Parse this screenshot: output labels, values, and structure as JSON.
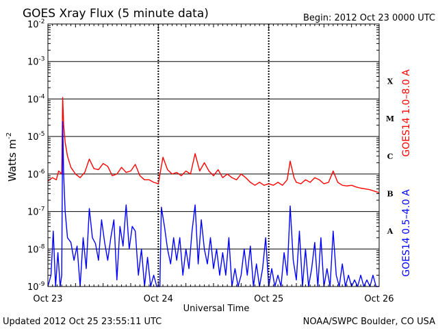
{
  "header": {
    "title": "GOES Xray Flux (5 minute data)",
    "begin": "Begin:  2012 Oct 23 0000 UTC"
  },
  "footer": {
    "updated": "Updated 2012 Oct 25 23:55:11 UTC",
    "source": "NOAA/SWPC Boulder, CO USA"
  },
  "chart_data": {
    "type": "line",
    "title": "GOES Xray Flux (5 minute data)",
    "xlabel": "Universal Time",
    "ylabel": "Watts m",
    "ylabel_sup": "-2",
    "yscale": "log",
    "ylim": [
      1e-09,
      0.01
    ],
    "xlim": [
      "2012-10-23 00:00",
      "2012-10-26 00:00"
    ],
    "x_ticks": [
      {
        "date": "2012-10-23 00:00",
        "label": "Oct 23"
      },
      {
        "date": "2012-10-24 00:00",
        "label": "Oct 24"
      },
      {
        "date": "2012-10-25 00:00",
        "label": "Oct 25"
      },
      {
        "date": "2012-10-26 00:00",
        "label": "Oct 26"
      }
    ],
    "y_ticks": [
      {
        "value": 0.01,
        "base": "10",
        "exp": "-2"
      },
      {
        "value": 0.001,
        "base": "10",
        "exp": "-3"
      },
      {
        "value": 0.0001,
        "base": "10",
        "exp": "-4"
      },
      {
        "value": 1e-05,
        "base": "10",
        "exp": "-5"
      },
      {
        "value": 1e-06,
        "base": "10",
        "exp": "-6"
      },
      {
        "value": 1e-07,
        "base": "10",
        "exp": "-7"
      },
      {
        "value": 1e-08,
        "base": "10",
        "exp": "-8"
      },
      {
        "value": 1e-09,
        "base": "10",
        "exp": "-9"
      }
    ],
    "flare_classes": [
      {
        "label": "X",
        "value": 0.0003
      },
      {
        "label": "M",
        "value": 3e-05
      },
      {
        "label": "C",
        "value": 3e-06
      },
      {
        "label": "B",
        "value": 3e-07
      },
      {
        "label": "A",
        "value": 3e-08
      }
    ],
    "grid": true,
    "series": [
      {
        "name": "GOES14 1.0–8.0 A",
        "color": "#ff0000",
        "points": [
          [
            "2012-10-23 00:00",
            6.5e-07
          ],
          [
            "2012-10-23 01:00",
            8e-07
          ],
          [
            "2012-10-23 01:50",
            7e-07
          ],
          [
            "2012-10-23 02:20",
            1.2e-06
          ],
          [
            "2012-10-23 03:00",
            1e-06
          ],
          [
            "2012-10-23 03:13",
            0.00011
          ],
          [
            "2012-10-23 03:25",
            2e-05
          ],
          [
            "2012-10-23 03:45",
            7e-06
          ],
          [
            "2012-10-23 04:15",
            3e-06
          ],
          [
            "2012-10-23 05:00",
            1.5e-06
          ],
          [
            "2012-10-23 06:00",
            1e-06
          ],
          [
            "2012-10-23 07:00",
            8e-07
          ],
          [
            "2012-10-23 08:00",
            1.1e-06
          ],
          [
            "2012-10-23 09:00",
            2.5e-06
          ],
          [
            "2012-10-23 10:00",
            1.4e-06
          ],
          [
            "2012-10-23 11:00",
            1.3e-06
          ],
          [
            "2012-10-23 12:00",
            1.9e-06
          ],
          [
            "2012-10-23 13:00",
            1.6e-06
          ],
          [
            "2012-10-23 14:00",
            9e-07
          ],
          [
            "2012-10-23 15:00",
            1e-06
          ],
          [
            "2012-10-23 16:00",
            1.5e-06
          ],
          [
            "2012-10-23 17:00",
            1.1e-06
          ],
          [
            "2012-10-23 18:00",
            1.2e-06
          ],
          [
            "2012-10-23 19:00",
            1.8e-06
          ],
          [
            "2012-10-23 20:00",
            9e-07
          ],
          [
            "2012-10-23 21:00",
            7e-07
          ],
          [
            "2012-10-23 22:00",
            7e-07
          ],
          [
            "2012-10-23 23:00",
            6e-07
          ],
          [
            "2012-10-24 00:00",
            5.5e-07
          ],
          [
            "2012-10-24 01:00",
            2.8e-06
          ],
          [
            "2012-10-24 02:00",
            1.3e-06
          ],
          [
            "2012-10-24 03:00",
            1e-06
          ],
          [
            "2012-10-24 04:00",
            1.1e-06
          ],
          [
            "2012-10-24 05:00",
            9e-07
          ],
          [
            "2012-10-24 06:00",
            1.2e-06
          ],
          [
            "2012-10-24 07:00",
            1e-06
          ],
          [
            "2012-10-24 08:00",
            3.5e-06
          ],
          [
            "2012-10-24 09:00",
            1.2e-06
          ],
          [
            "2012-10-24 10:00",
            2e-06
          ],
          [
            "2012-10-24 11:00",
            1.2e-06
          ],
          [
            "2012-10-24 12:00",
            9e-07
          ],
          [
            "2012-10-24 13:00",
            1.3e-06
          ],
          [
            "2012-10-24 14:00",
            8e-07
          ],
          [
            "2012-10-24 15:00",
            1e-06
          ],
          [
            "2012-10-24 16:00",
            8e-07
          ],
          [
            "2012-10-24 17:00",
            7e-07
          ],
          [
            "2012-10-24 18:00",
            1e-06
          ],
          [
            "2012-10-24 19:00",
            8e-07
          ],
          [
            "2012-10-24 20:00",
            6e-07
          ],
          [
            "2012-10-24 21:00",
            5e-07
          ],
          [
            "2012-10-24 22:00",
            6e-07
          ],
          [
            "2012-10-24 23:00",
            5e-07
          ],
          [
            "2012-10-25 00:00",
            5.5e-07
          ],
          [
            "2012-10-25 01:00",
            5e-07
          ],
          [
            "2012-10-25 02:00",
            6e-07
          ],
          [
            "2012-10-25 03:00",
            5e-07
          ],
          [
            "2012-10-25 04:00",
            7e-07
          ],
          [
            "2012-10-25 04:40",
            2.2e-06
          ],
          [
            "2012-10-25 05:30",
            8e-07
          ],
          [
            "2012-10-25 06:00",
            6e-07
          ],
          [
            "2012-10-25 07:00",
            5.5e-07
          ],
          [
            "2012-10-25 08:00",
            7e-07
          ],
          [
            "2012-10-25 09:00",
            6e-07
          ],
          [
            "2012-10-25 10:00",
            8e-07
          ],
          [
            "2012-10-25 11:00",
            7e-07
          ],
          [
            "2012-10-25 12:00",
            5.5e-07
          ],
          [
            "2012-10-25 13:00",
            6e-07
          ],
          [
            "2012-10-25 14:00",
            1.2e-06
          ],
          [
            "2012-10-25 15:00",
            6e-07
          ],
          [
            "2012-10-25 16:00",
            5e-07
          ],
          [
            "2012-10-25 17:00",
            4.8e-07
          ],
          [
            "2012-10-25 18:00",
            5e-07
          ],
          [
            "2012-10-25 19:00",
            4.5e-07
          ],
          [
            "2012-10-25 20:00",
            4.2e-07
          ],
          [
            "2012-10-25 21:00",
            4e-07
          ],
          [
            "2012-10-25 22:00",
            3.8e-07
          ],
          [
            "2012-10-25 23:55",
            3.2e-07
          ]
        ]
      },
      {
        "name": "GOES14 0.5–4.0 A",
        "color": "#0000ff",
        "points": [
          [
            "2012-10-23 00:00",
            1e-09
          ],
          [
            "2012-10-23 00:40",
            2e-09
          ],
          [
            "2012-10-23 01:10",
            3e-08
          ],
          [
            "2012-10-23 01:40",
            1e-09
          ],
          [
            "2012-10-23 02:10",
            8e-09
          ],
          [
            "2012-10-23 02:40",
            1e-09
          ],
          [
            "2012-10-23 03:00",
            2e-09
          ],
          [
            "2012-10-23 03:13",
            2.5e-05
          ],
          [
            "2012-10-23 03:25",
            1e-06
          ],
          [
            "2012-10-23 03:45",
            1e-07
          ],
          [
            "2012-10-23 04:15",
            2e-08
          ],
          [
            "2012-10-23 05:00",
            1.5e-08
          ],
          [
            "2012-10-23 05:40",
            5e-09
          ],
          [
            "2012-10-23 06:20",
            1.2e-08
          ],
          [
            "2012-10-23 07:00",
            1e-09
          ],
          [
            "2012-10-23 07:40",
            2e-08
          ],
          [
            "2012-10-23 08:20",
            3e-09
          ],
          [
            "2012-10-23 09:00",
            1.2e-07
          ],
          [
            "2012-10-23 09:40",
            2e-08
          ],
          [
            "2012-10-23 10:20",
            1.4e-08
          ],
          [
            "2012-10-23 11:00",
            5e-09
          ],
          [
            "2012-10-23 11:40",
            6e-08
          ],
          [
            "2012-10-23 12:20",
            1.5e-08
          ],
          [
            "2012-10-23 13:00",
            5e-09
          ],
          [
            "2012-10-23 13:40",
            2e-08
          ],
          [
            "2012-10-23 14:20",
            6e-08
          ],
          [
            "2012-10-23 15:00",
            1.5e-09
          ],
          [
            "2012-10-23 15:40",
            4e-08
          ],
          [
            "2012-10-23 16:20",
            1.2e-08
          ],
          [
            "2012-10-23 17:00",
            1.5e-07
          ],
          [
            "2012-10-23 17:40",
            1e-08
          ],
          [
            "2012-10-23 18:20",
            4e-08
          ],
          [
            "2012-10-23 19:00",
            3e-08
          ],
          [
            "2012-10-23 19:40",
            2e-09
          ],
          [
            "2012-10-23 20:20",
            1e-08
          ],
          [
            "2012-10-23 21:00",
            1e-09
          ],
          [
            "2012-10-23 21:40",
            6e-09
          ],
          [
            "2012-10-23 22:20",
            1e-09
          ],
          [
            "2012-10-23 23:00",
            2e-09
          ],
          [
            "2012-10-23 23:40",
            1e-09
          ],
          [
            "2012-10-24 00:20",
            1e-09
          ],
          [
            "2012-10-24 00:40",
            1.3e-07
          ],
          [
            "2012-10-24 01:20",
            4e-08
          ],
          [
            "2012-10-24 02:00",
            1e-08
          ],
          [
            "2012-10-24 02:40",
            4e-09
          ],
          [
            "2012-10-24 03:20",
            2e-08
          ],
          [
            "2012-10-24 04:00",
            5e-09
          ],
          [
            "2012-10-24 04:40",
            2e-08
          ],
          [
            "2012-10-24 05:20",
            2e-09
          ],
          [
            "2012-10-24 06:00",
            1e-08
          ],
          [
            "2012-10-24 06:40",
            3e-09
          ],
          [
            "2012-10-24 07:20",
            3e-08
          ],
          [
            "2012-10-24 08:00",
            1.5e-07
          ],
          [
            "2012-10-24 08:40",
            4e-09
          ],
          [
            "2012-10-24 09:20",
            6e-08
          ],
          [
            "2012-10-24 10:00",
            1e-08
          ],
          [
            "2012-10-24 10:40",
            4e-09
          ],
          [
            "2012-10-24 11:20",
            2e-08
          ],
          [
            "2012-10-24 12:00",
            3e-09
          ],
          [
            "2012-10-24 12:40",
            1e-08
          ],
          [
            "2012-10-24 13:20",
            2e-09
          ],
          [
            "2012-10-24 14:00",
            8e-09
          ],
          [
            "2012-10-24 14:40",
            2e-09
          ],
          [
            "2012-10-24 15:20",
            2e-08
          ],
          [
            "2012-10-24 16:00",
            1e-09
          ],
          [
            "2012-10-24 16:40",
            3e-09
          ],
          [
            "2012-10-24 17:20",
            1e-09
          ],
          [
            "2012-10-24 18:00",
            2e-09
          ],
          [
            "2012-10-24 18:40",
            1e-08
          ],
          [
            "2012-10-24 19:20",
            2e-09
          ],
          [
            "2012-10-24 20:00",
            1.2e-08
          ],
          [
            "2012-10-24 20:40",
            1e-09
          ],
          [
            "2012-10-24 21:20",
            4e-09
          ],
          [
            "2012-10-24 22:00",
            1e-09
          ],
          [
            "2012-10-24 22:40",
            3e-09
          ],
          [
            "2012-10-24 23:20",
            2e-08
          ],
          [
            "2012-10-25 00:00",
            1e-09
          ],
          [
            "2012-10-25 00:40",
            3e-09
          ],
          [
            "2012-10-25 01:20",
            1e-09
          ],
          [
            "2012-10-25 02:00",
            2e-09
          ],
          [
            "2012-10-25 02:40",
            1e-09
          ],
          [
            "2012-10-25 03:20",
            8e-09
          ],
          [
            "2012-10-25 04:00",
            2e-09
          ],
          [
            "2012-10-25 04:40",
            1.4e-07
          ],
          [
            "2012-10-25 05:20",
            5e-09
          ],
          [
            "2012-10-25 06:00",
            1.5e-09
          ],
          [
            "2012-10-25 06:40",
            3e-08
          ],
          [
            "2012-10-25 07:20",
            1e-09
          ],
          [
            "2012-10-25 08:00",
            1e-08
          ],
          [
            "2012-10-25 08:40",
            1e-09
          ],
          [
            "2012-10-25 09:20",
            3e-09
          ],
          [
            "2012-10-25 10:00",
            1.5e-08
          ],
          [
            "2012-10-25 10:40",
            1e-09
          ],
          [
            "2012-10-25 11:20",
            2e-08
          ],
          [
            "2012-10-25 12:00",
            1e-09
          ],
          [
            "2012-10-25 12:40",
            3e-09
          ],
          [
            "2012-10-25 13:20",
            1e-09
          ],
          [
            "2012-10-25 14:00",
            3e-08
          ],
          [
            "2012-10-25 14:40",
            2e-09
          ],
          [
            "2012-10-25 15:20",
            1e-09
          ],
          [
            "2012-10-25 16:00",
            4e-09
          ],
          [
            "2012-10-25 16:40",
            1e-09
          ],
          [
            "2012-10-25 17:20",
            2e-09
          ],
          [
            "2012-10-25 18:00",
            1e-09
          ],
          [
            "2012-10-25 18:40",
            1.5e-09
          ],
          [
            "2012-10-25 19:20",
            1e-09
          ],
          [
            "2012-10-25 20:00",
            2e-09
          ],
          [
            "2012-10-25 20:40",
            1e-09
          ],
          [
            "2012-10-25 21:20",
            1.5e-09
          ],
          [
            "2012-10-25 22:00",
            1e-09
          ],
          [
            "2012-10-25 22:40",
            2e-09
          ],
          [
            "2012-10-25 23:20",
            1e-09
          ],
          [
            "2012-10-25 23:55",
            1e-09
          ]
        ]
      }
    ]
  }
}
